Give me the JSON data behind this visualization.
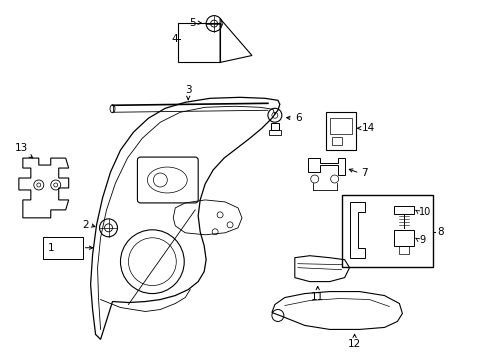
{
  "background_color": "#ffffff",
  "line_color": "#000000",
  "figsize": [
    4.89,
    3.6
  ],
  "dpi": 100
}
